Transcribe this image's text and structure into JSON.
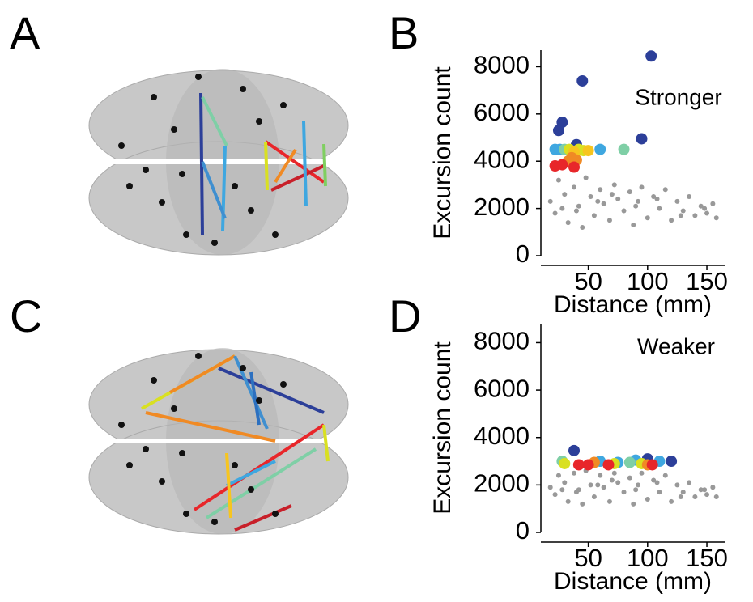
{
  "panels": [
    "A",
    "B",
    "C",
    "D"
  ],
  "chart_data": [
    {
      "type": "scatter",
      "annotation": "Stronger",
      "x_label": "Distance (mm)",
      "y_label": "Excursion count",
      "xlim": [
        10,
        165
      ],
      "ylim": [
        0,
        8700
      ],
      "xticks": [
        50,
        100,
        150
      ],
      "yticks": [
        0,
        2000,
        4000,
        6000,
        8000
      ],
      "series": [
        {
          "color": "#999999",
          "x": [
            18,
            22,
            25,
            30,
            33,
            38,
            42,
            45,
            48,
            52,
            55,
            60,
            63,
            68,
            72,
            75,
            80,
            85,
            88,
            92,
            95,
            100,
            105,
            110,
            115,
            120,
            125,
            130,
            135,
            140,
            145,
            150,
            155,
            158,
            28,
            40,
            58,
            70,
            90,
            108,
            128,
            148
          ],
          "values": [
            2300,
            1800,
            3200,
            2600,
            1400,
            2900,
            2100,
            1200,
            3300,
            2500,
            1700,
            2800,
            2200,
            1500,
            3000,
            2400,
            1900,
            2700,
            1300,
            2300,
            2900,
            1600,
            2500,
            2000,
            2800,
            1500,
            2300,
            1900,
            2500,
            1700,
            2100,
            1800,
            2200,
            1600,
            2000,
            1900,
            2300,
            2600,
            2100,
            2400,
            1700,
            2000
          ]
        },
        {
          "color": "#2c3f99",
          "x": [
            103,
            45,
            28,
            25,
            95,
            40
          ],
          "values": [
            8450,
            7400,
            5650,
            5300,
            4950,
            4700
          ]
        },
        {
          "color": "#3fa7e0",
          "x": [
            22,
            60,
            26
          ],
          "values": [
            4500,
            4500,
            4500
          ]
        },
        {
          "color": "#7fcfa6",
          "x": [
            80,
            30
          ],
          "values": [
            4500,
            4500
          ]
        },
        {
          "color": "#d9e021",
          "x": [
            34,
            46,
            42
          ],
          "values": [
            4500,
            4450,
            4500
          ]
        },
        {
          "color": "#f7c51e",
          "x": [
            38,
            50
          ],
          "values": [
            4400,
            4450
          ]
        },
        {
          "color": "#f08a24",
          "x": [
            36,
            40,
            33
          ],
          "values": [
            4150,
            4050,
            4000
          ]
        },
        {
          "color": "#e8262a",
          "x": [
            22,
            28,
            38
          ],
          "values": [
            3800,
            3850,
            3750
          ]
        }
      ]
    },
    {
      "type": "scatter",
      "annotation": "Weaker",
      "x_label": "Distance (mm)",
      "y_label": "Excursion count",
      "xlim": [
        10,
        165
      ],
      "ylim": [
        0,
        8800
      ],
      "xticks": [
        50,
        100,
        150
      ],
      "yticks": [
        0,
        2000,
        4000,
        6000,
        8000
      ],
      "series": [
        {
          "color": "#999999",
          "x": [
            18,
            22,
            25,
            30,
            33,
            38,
            42,
            45,
            48,
            52,
            55,
            60,
            63,
            68,
            72,
            75,
            80,
            85,
            88,
            92,
            95,
            100,
            105,
            110,
            115,
            120,
            125,
            130,
            135,
            140,
            145,
            150,
            155,
            158,
            28,
            40,
            58,
            70,
            90,
            108,
            128,
            148
          ],
          "values": [
            1900,
            1600,
            2400,
            2100,
            1300,
            2500,
            1800,
            1200,
            2600,
            2000,
            1500,
            2400,
            1900,
            1300,
            2500,
            2100,
            1700,
            2300,
            1200,
            2000,
            2500,
            1400,
            2200,
            1700,
            2400,
            1300,
            2000,
            1700,
            2100,
            1500,
            1800,
            1600,
            1900,
            1500,
            1800,
            1700,
            2000,
            2200,
            1800,
            2100,
            1500,
            1800
          ]
        },
        {
          "color": "#2c3f99",
          "x": [
            38,
            100,
            120
          ],
          "values": [
            3450,
            3100,
            3000
          ]
        },
        {
          "color": "#3fa7e0",
          "x": [
            60,
            90,
            110,
            75
          ],
          "values": [
            3000,
            3050,
            3000,
            2950
          ]
        },
        {
          "color": "#7fcfa6",
          "x": [
            28,
            85
          ],
          "values": [
            3000,
            2950
          ]
        },
        {
          "color": "#d9e021",
          "x": [
            30,
            72,
            95
          ],
          "values": [
            2900,
            2900,
            2900
          ]
        },
        {
          "color": "#f08a24",
          "x": [
            100,
            55
          ],
          "values": [
            2850,
            2950
          ]
        },
        {
          "color": "#e8262a",
          "x": [
            42,
            50,
            67,
            104
          ],
          "values": [
            2850,
            2850,
            2850,
            2850
          ]
        }
      ]
    }
  ]
}
